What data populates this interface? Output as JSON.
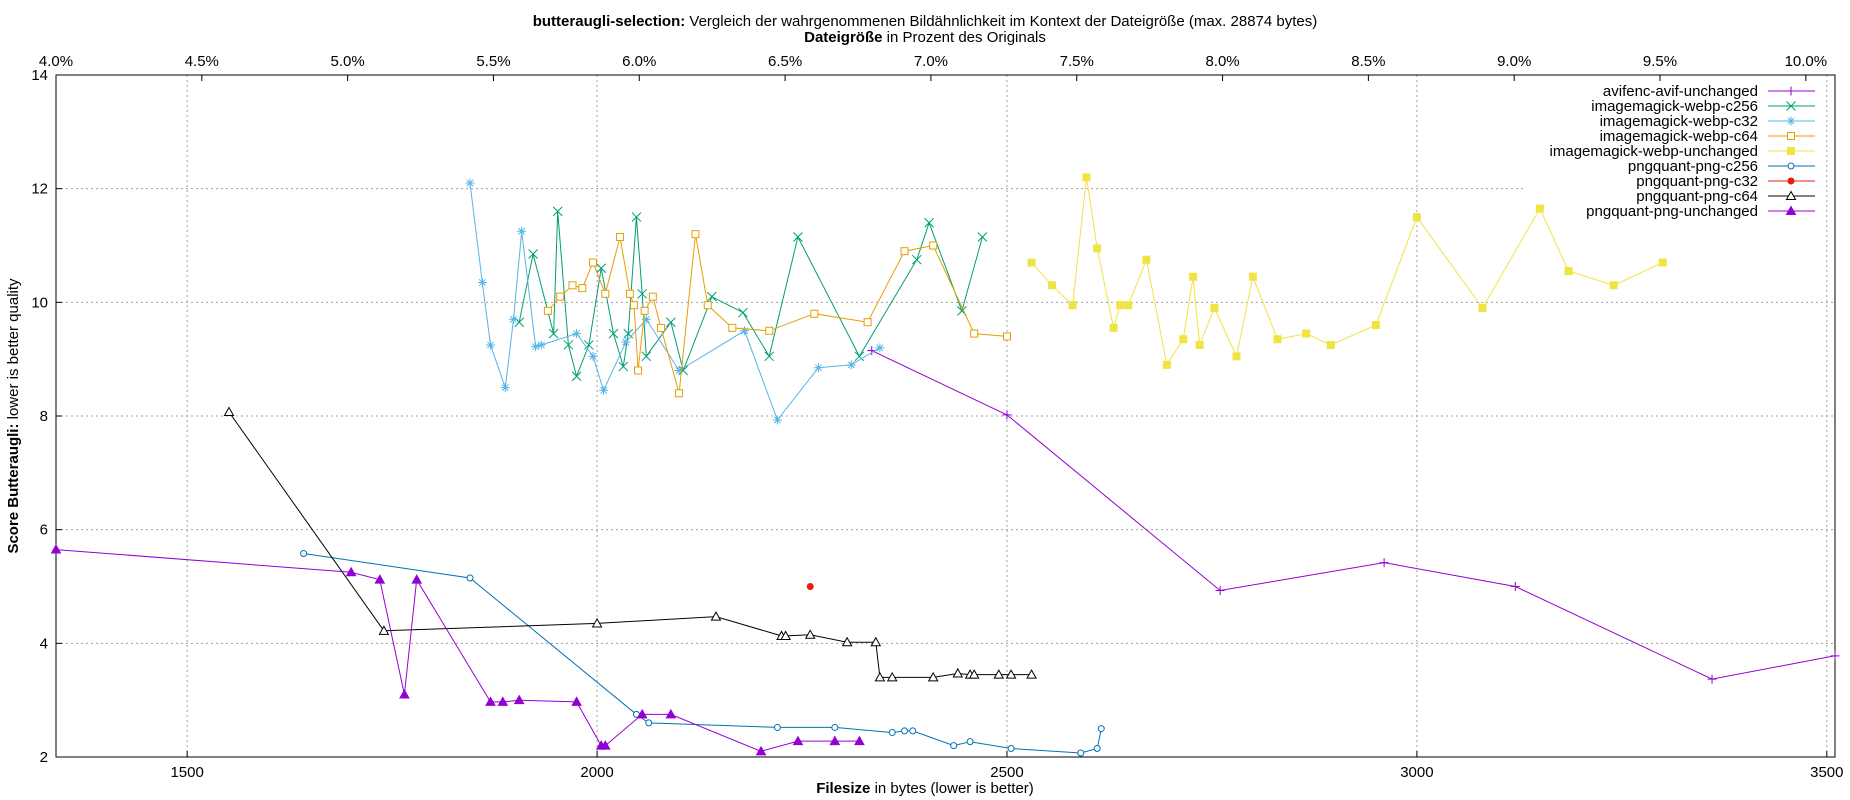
{
  "chart_data": {
    "type": "line",
    "title_bold": "butteraugli-selection:",
    "title_rest": " Vergleich der wahrgenommenen Bildähnlichkeit im Kontext der Dateigröße (max. 28874 bytes)",
    "x2label_bold": "Dateigröße",
    "x2label_rest": " in Prozent des Originals",
    "xlabel_bold": "Filesize",
    "xlabel_rest": " in bytes (lower is better)",
    "ylabel_bold": "Score Butteraugli:",
    "ylabel_rest": " lower is better quality",
    "xlim": [
      1340,
      3510
    ],
    "ylim": [
      2,
      14
    ],
    "x2lim": [
      4.0,
      10.1
    ],
    "x_ticks": [
      1500,
      2000,
      2500,
      3000,
      3500
    ],
    "y_ticks": [
      2,
      4,
      6,
      8,
      10,
      12,
      14
    ],
    "x2_ticks": [
      {
        "v": 4.0,
        "label": "4.0%"
      },
      {
        "v": 4.5,
        "label": "4.5%"
      },
      {
        "v": 5.0,
        "label": "5.0%"
      },
      {
        "v": 5.5,
        "label": "5.5%"
      },
      {
        "v": 6.0,
        "label": "6.0%"
      },
      {
        "v": 6.5,
        "label": "6.5%"
      },
      {
        "v": 7.0,
        "label": "7.0%"
      },
      {
        "v": 7.5,
        "label": "7.5%"
      },
      {
        "v": 8.0,
        "label": "8.0%"
      },
      {
        "v": 8.5,
        "label": "8.5%"
      },
      {
        "v": 9.0,
        "label": "9.0%"
      },
      {
        "v": 9.5,
        "label": "9.5%"
      },
      {
        "v": 10.0,
        "label": "10.0%"
      }
    ],
    "grid": true,
    "legend_position": "top-right",
    "series": [
      {
        "name": "avifenc-avif-unchanged",
        "color": "#9400d3",
        "marker": "plus",
        "points": [
          [
            2335,
            9.15
          ],
          [
            2500,
            8.02
          ],
          [
            2760,
            4.93
          ],
          [
            2960,
            5.42
          ],
          [
            3120,
            5.0
          ],
          [
            3360,
            3.37
          ],
          [
            3510,
            3.78
          ]
        ]
      },
      {
        "name": "imagemagick-webp-c256",
        "color": "#009e73",
        "marker": "x",
        "points": [
          [
            1905,
            9.65
          ],
          [
            1922,
            10.85
          ],
          [
            1947,
            9.45
          ],
          [
            1952,
            11.6
          ],
          [
            1965,
            9.25
          ],
          [
            1975,
            8.7
          ],
          [
            1990,
            9.25
          ],
          [
            2005,
            10.6
          ],
          [
            2020,
            9.45
          ],
          [
            2032,
            8.87
          ],
          [
            2038,
            9.45
          ],
          [
            2048,
            11.5
          ],
          [
            2055,
            10.15
          ],
          [
            2060,
            9.05
          ],
          [
            2090,
            9.65
          ],
          [
            2105,
            8.8
          ],
          [
            2140,
            10.1
          ],
          [
            2178,
            9.82
          ],
          [
            2210,
            9.05
          ],
          [
            2245,
            11.15
          ],
          [
            2320,
            9.05
          ],
          [
            2390,
            10.75
          ],
          [
            2405,
            11.4
          ],
          [
            2445,
            9.85
          ],
          [
            2470,
            11.15
          ]
        ]
      },
      {
        "name": "imagemagick-webp-c32",
        "color": "#56b4e9",
        "marker": "star",
        "points": [
          [
            1845,
            12.1
          ],
          [
            1860,
            10.35
          ],
          [
            1870,
            9.25
          ],
          [
            1888,
            8.5
          ],
          [
            1898,
            9.7
          ],
          [
            1908,
            11.25
          ],
          [
            1925,
            9.22
          ],
          [
            1932,
            9.25
          ],
          [
            1975,
            9.45
          ],
          [
            1995,
            9.05
          ],
          [
            2008,
            8.45
          ],
          [
            2035,
            9.3
          ],
          [
            2060,
            9.7
          ],
          [
            2100,
            8.8
          ],
          [
            2180,
            9.5
          ],
          [
            2220,
            7.93
          ],
          [
            2270,
            8.85
          ],
          [
            2310,
            8.9
          ],
          [
            2345,
            9.2
          ]
        ]
      },
      {
        "name": "imagemagick-webp-c64",
        "color": "#e69f00",
        "marker": "square",
        "points": [
          [
            1940,
            9.85
          ],
          [
            1955,
            10.1
          ],
          [
            1970,
            10.3
          ],
          [
            1982,
            10.25
          ],
          [
            1995,
            10.7
          ],
          [
            2010,
            10.15
          ],
          [
            2028,
            11.15
          ],
          [
            2040,
            10.15
          ],
          [
            2045,
            9.95
          ],
          [
            2050,
            8.8
          ],
          [
            2058,
            9.85
          ],
          [
            2068,
            10.1
          ],
          [
            2078,
            9.55
          ],
          [
            2100,
            8.4
          ],
          [
            2120,
            11.2
          ],
          [
            2135,
            9.95
          ],
          [
            2165,
            9.55
          ],
          [
            2210,
            9.5
          ],
          [
            2265,
            9.8
          ],
          [
            2330,
            9.65
          ],
          [
            2375,
            10.9
          ],
          [
            2410,
            11.0
          ],
          [
            2460,
            9.45
          ],
          [
            2500,
            9.4
          ]
        ]
      },
      {
        "name": "imagemagick-webp-unchanged",
        "color": "#f0e442",
        "marker": "square_filled",
        "points": [
          [
            2530,
            10.7
          ],
          [
            2555,
            10.3
          ],
          [
            2580,
            9.95
          ],
          [
            2597,
            12.2
          ],
          [
            2610,
            10.95
          ],
          [
            2630,
            9.55
          ],
          [
            2638,
            9.95
          ],
          [
            2648,
            9.95
          ],
          [
            2670,
            10.75
          ],
          [
            2695,
            8.9
          ],
          [
            2715,
            9.35
          ],
          [
            2727,
            10.45
          ],
          [
            2735,
            9.25
          ],
          [
            2753,
            9.9
          ],
          [
            2780,
            9.05
          ],
          [
            2800,
            10.45
          ],
          [
            2830,
            9.35
          ],
          [
            2865,
            9.45
          ],
          [
            2895,
            9.25
          ],
          [
            2950,
            9.6
          ],
          [
            3000,
            11.5
          ],
          [
            3080,
            9.9
          ],
          [
            3150,
            11.65
          ],
          [
            3185,
            10.55
          ],
          [
            3240,
            10.3
          ],
          [
            3300,
            10.7
          ]
        ]
      },
      {
        "name": "pngquant-png-c256",
        "color": "#0072b2",
        "marker": "circle",
        "points": [
          [
            1642,
            5.58
          ],
          [
            1845,
            5.15
          ],
          [
            2048,
            2.75
          ],
          [
            2063,
            2.6
          ],
          [
            2220,
            2.52
          ],
          [
            2290,
            2.52
          ],
          [
            2360,
            2.43
          ],
          [
            2375,
            2.46
          ],
          [
            2385,
            2.46
          ],
          [
            2435,
            2.2
          ],
          [
            2455,
            2.27
          ],
          [
            2505,
            2.15
          ],
          [
            2590,
            2.07
          ],
          [
            2610,
            2.15
          ],
          [
            2615,
            2.5
          ]
        ]
      },
      {
        "name": "pngquant-png-c32",
        "color": "#e51e10",
        "marker": "dot",
        "points": [
          [
            2260,
            5.0
          ]
        ]
      },
      {
        "name": "pngquant-png-c64",
        "color": "#000000",
        "marker": "triangle",
        "points": [
          [
            1551,
            8.07
          ],
          [
            1740,
            4.22
          ],
          [
            2000,
            4.35
          ],
          [
            2145,
            4.47
          ],
          [
            2225,
            4.13
          ],
          [
            2230,
            4.13
          ],
          [
            2260,
            4.15
          ],
          [
            2305,
            4.02
          ],
          [
            2340,
            4.02
          ],
          [
            2345,
            3.4
          ],
          [
            2360,
            3.4
          ],
          [
            2410,
            3.4
          ],
          [
            2440,
            3.47
          ],
          [
            2455,
            3.45
          ],
          [
            2460,
            3.45
          ],
          [
            2490,
            3.45
          ],
          [
            2505,
            3.45
          ],
          [
            2530,
            3.45
          ]
        ]
      },
      {
        "name": "pngquant-png-unchanged",
        "color": "#9400d3",
        "marker": "triangle_filled",
        "points": [
          [
            1340,
            5.65
          ],
          [
            1700,
            5.25
          ],
          [
            1735,
            5.12
          ],
          [
            1765,
            3.1
          ],
          [
            1780,
            5.12
          ],
          [
            1870,
            2.97
          ],
          [
            1885,
            2.97
          ],
          [
            1905,
            3.0
          ],
          [
            1975,
            2.97
          ],
          [
            2005,
            2.2
          ],
          [
            2010,
            2.2
          ],
          [
            2055,
            2.75
          ],
          [
            2090,
            2.75
          ],
          [
            2200,
            2.1
          ],
          [
            2245,
            2.28
          ],
          [
            2290,
            2.28
          ],
          [
            2320,
            2.28
          ]
        ]
      }
    ]
  }
}
